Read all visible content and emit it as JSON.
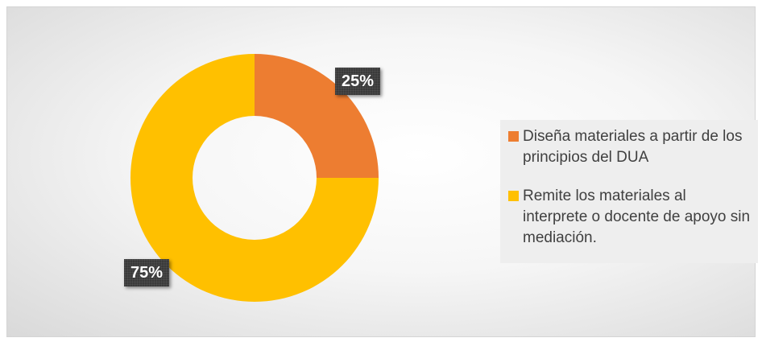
{
  "chart_data": {
    "type": "pie",
    "donut": true,
    "slices": [
      {
        "label": "Diseña materiales a partir de los principios del DUA",
        "value": 25,
        "data_label": "25%",
        "color": "#ED7D31"
      },
      {
        "label": "Remite los materiales al interprete o docente de apoyo sin mediación.",
        "value": 75,
        "data_label": "75%",
        "color": "#FFC000"
      }
    ],
    "legend_position": "right"
  }
}
